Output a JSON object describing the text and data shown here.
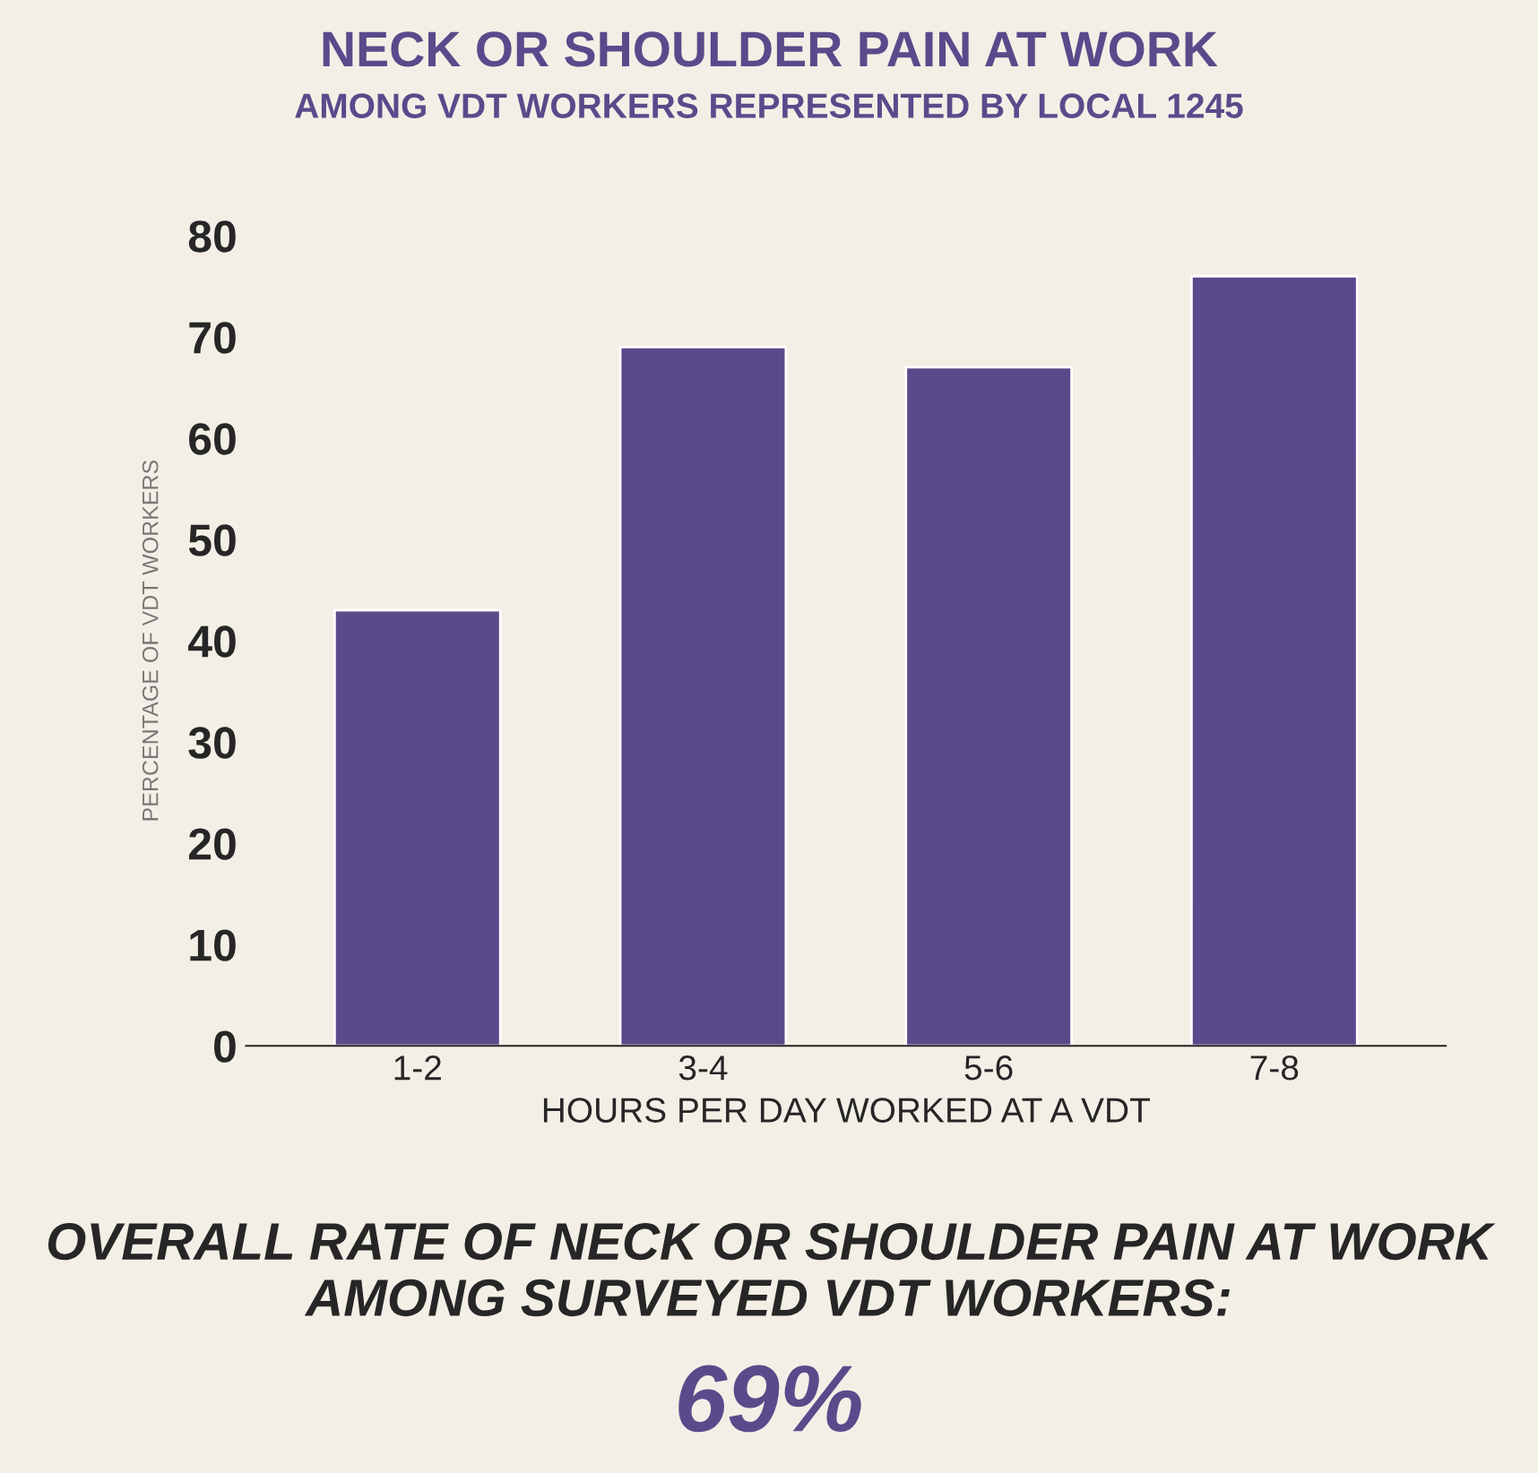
{
  "chart_data": {
    "type": "bar",
    "title": "NECK OR SHOULDER PAIN AT WORK",
    "subtitle": "AMONG VDT WORKERS REPRESENTED BY LOCAL 1245",
    "xlabel": "HOURS PER DAY WORKED AT A VDT",
    "ylabel": "PERCENTAGE OF VDT WORKERS",
    "categories": [
      "1-2",
      "3-4",
      "5-6",
      "7-8"
    ],
    "values": [
      43,
      69,
      67,
      76
    ],
    "color": "#5b4a8b",
    "ylim": [
      0,
      80
    ],
    "yticks": [
      0,
      10,
      20,
      30,
      40,
      50,
      60,
      70,
      80
    ],
    "grid": false,
    "legend": false,
    "annotations": [
      "OVERALL RATE OF NECK OR SHOULDER PAIN AT WORK\nAMONG SURVEYED VDT WORKERS:",
      "69%"
    ]
  }
}
